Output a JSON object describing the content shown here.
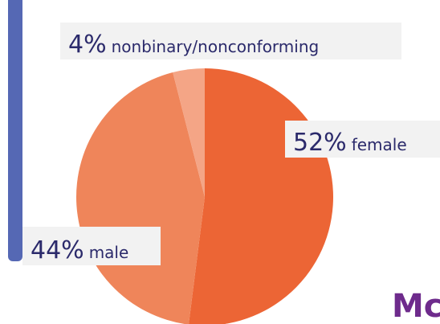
{
  "chart_data": {
    "type": "pie",
    "categories": [
      "female",
      "male",
      "nonbinary/nonconforming"
    ],
    "values": [
      52,
      44,
      4
    ],
    "value_labels": [
      "52%",
      "44%",
      "4%"
    ],
    "colors": [
      "#ec6535",
      "#ef855a",
      "#f4a586"
    ],
    "brand_text": "Mc"
  }
}
